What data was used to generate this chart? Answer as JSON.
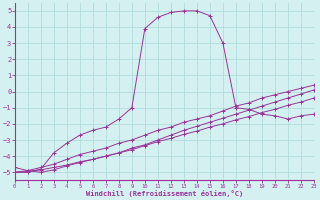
{
  "xlabel": "Windchill (Refroidissement éolien,°C)",
  "xlim": [
    0,
    23
  ],
  "ylim": [
    -5.5,
    5.5
  ],
  "xticks": [
    0,
    1,
    2,
    3,
    4,
    5,
    6,
    7,
    8,
    9,
    10,
    11,
    12,
    13,
    14,
    15,
    16,
    17,
    18,
    19,
    20,
    21,
    22,
    23
  ],
  "yticks": [
    -5,
    -4,
    -3,
    -2,
    -1,
    0,
    1,
    2,
    3,
    4,
    5
  ],
  "background_color": "#d5f0f0",
  "grid_color": "#b0dede",
  "line_color": "#993399",
  "curve1_x": [
    0,
    1,
    2,
    3,
    4,
    5,
    6,
    7,
    8,
    9,
    10,
    11,
    12,
    13,
    14,
    15,
    16,
    17,
    18,
    19,
    20,
    21,
    22,
    23
  ],
  "curve1_y": [
    -5.0,
    -5.0,
    -4.8,
    -3.8,
    -3.2,
    -2.7,
    -2.4,
    -2.2,
    -1.7,
    -1.0,
    3.9,
    4.6,
    4.9,
    5.0,
    5.0,
    4.7,
    3.0,
    -1.0,
    -1.1,
    -1.4,
    -1.5,
    -1.7,
    -1.5,
    -1.4
  ],
  "curve2_x": [
    0,
    1,
    2,
    3,
    4,
    5,
    6,
    7,
    8,
    9,
    10,
    11,
    12,
    13,
    14,
    15,
    16,
    17,
    18,
    19,
    20,
    21,
    22,
    23
  ],
  "curve2_y": [
    -5.0,
    -4.9,
    -4.7,
    -4.5,
    -4.2,
    -3.9,
    -3.7,
    -3.5,
    -3.2,
    -3.0,
    -2.7,
    -2.4,
    -2.2,
    -1.9,
    -1.7,
    -1.5,
    -1.2,
    -0.9,
    -0.7,
    -0.4,
    -0.2,
    0.0,
    0.2,
    0.4
  ],
  "curve3_x": [
    0,
    1,
    2,
    3,
    4,
    5,
    6,
    7,
    8,
    9,
    10,
    11,
    12,
    13,
    14,
    15,
    16,
    17,
    18,
    19,
    20,
    21,
    22,
    23
  ],
  "curve3_y": [
    -5.0,
    -4.95,
    -4.85,
    -4.7,
    -4.55,
    -4.35,
    -4.2,
    -4.0,
    -3.8,
    -3.6,
    -3.35,
    -3.1,
    -2.9,
    -2.65,
    -2.45,
    -2.2,
    -2.0,
    -1.75,
    -1.55,
    -1.3,
    -1.1,
    -0.85,
    -0.65,
    -0.4
  ],
  "curve4_x": [
    0,
    1,
    2,
    3,
    4,
    5,
    6,
    7,
    8,
    9,
    10,
    11,
    12,
    13,
    14,
    15,
    16,
    17,
    18,
    19,
    20,
    21,
    22,
    23
  ],
  "curve4_y": [
    -4.7,
    -4.9,
    -5.0,
    -4.85,
    -4.6,
    -4.4,
    -4.2,
    -4.0,
    -3.8,
    -3.5,
    -3.3,
    -3.0,
    -2.7,
    -2.4,
    -2.15,
    -1.9,
    -1.65,
    -1.4,
    -1.15,
    -0.9,
    -0.65,
    -0.4,
    -0.15,
    0.1
  ]
}
